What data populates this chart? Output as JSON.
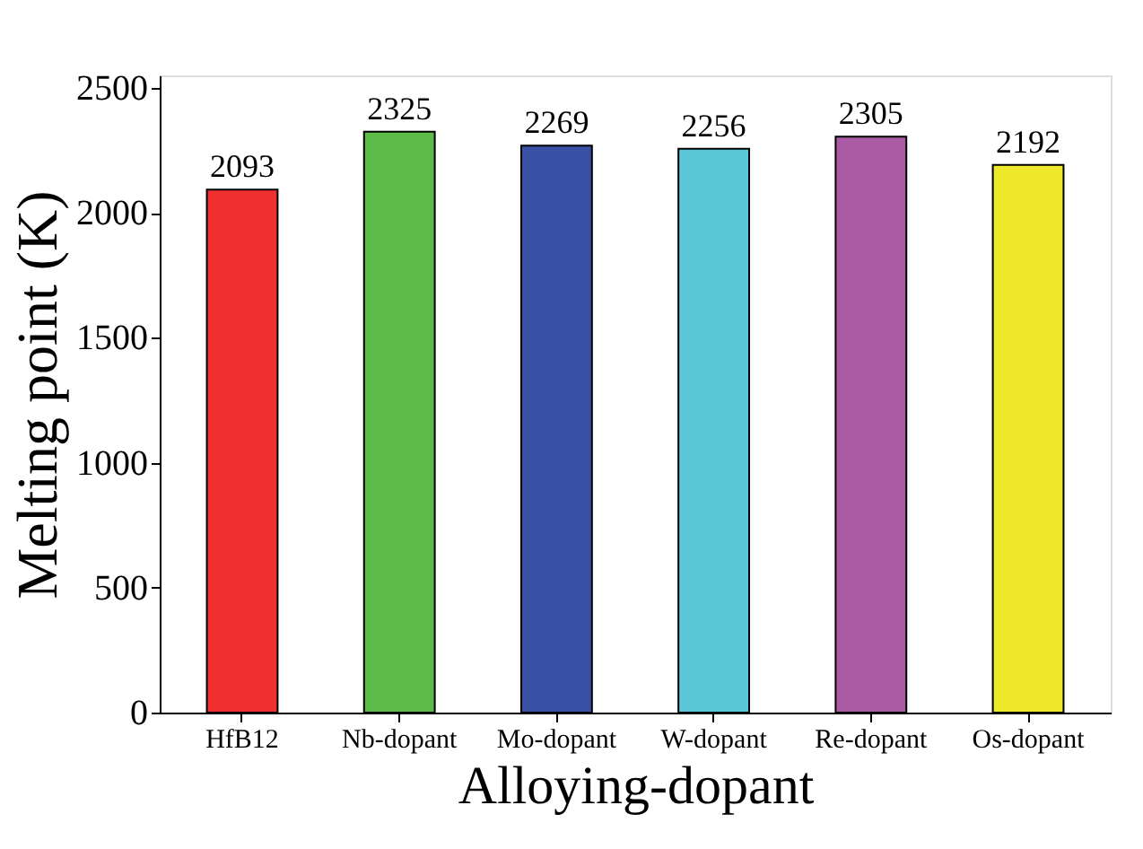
{
  "chart_data": {
    "type": "bar",
    "xlabel": "Alloying-dopant",
    "ylabel": "Melting point (K)",
    "categories": [
      "HfB12",
      "Nb-dopant",
      "Mo-dopant",
      "W-dopant",
      "Re-dopant",
      "Os-dopant"
    ],
    "values": [
      2093,
      2325,
      2269,
      2256,
      2305,
      2192
    ],
    "colors": [
      "#ee3030",
      "#5cbb48",
      "#3a50a4",
      "#5ac8d8",
      "#a95aa3",
      "#eee82a"
    ],
    "ylim": [
      0,
      2550
    ],
    "yticks": [
      0,
      500,
      1000,
      1500,
      2000,
      2500
    ],
    "data_labels": true,
    "grid": false
  }
}
